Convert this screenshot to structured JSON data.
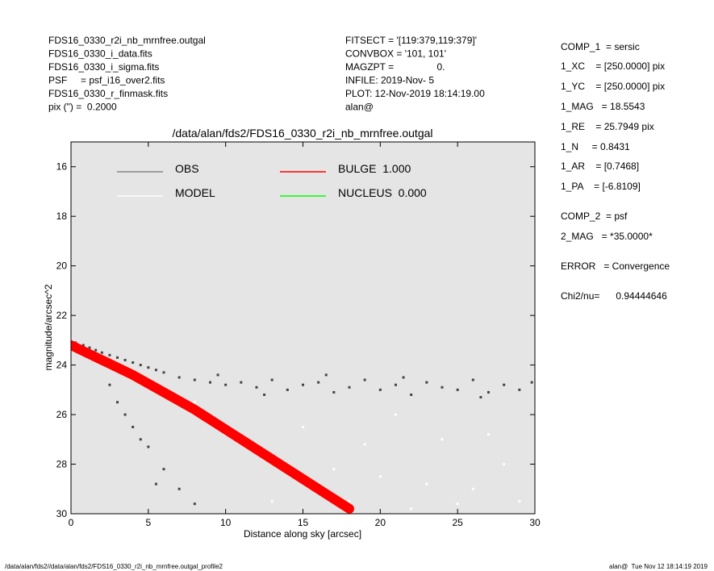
{
  "header": {
    "left": [
      "FDS16_0330_r2i_nb_mrnfree.outgal",
      "FDS16_0330_i_data.fits",
      "FDS16_0330_i_sigma.fits",
      "PSF     = psf_i16_over2.fits",
      "FDS16_0330_r_finmask.fits",
      "pix (\") =  0.2000"
    ],
    "middle": [
      "FITSECT = '[119:379,119:379]'",
      "CONVBOX = '101, 101'",
      "MAGZPT =                0.",
      "INFILE: 2019-Nov- 5",
      "PLOT: 12-Nov-2019 18:14:19.00",
      "alan@"
    ],
    "right": [
      "COMP_1  = sersic",
      "1_XC    = [250.0000] pix",
      "1_YC    = [250.0000] pix",
      "1_MAG   = 18.5543",
      "1_RE    = 25.7949 pix",
      "1_N     = 0.8431",
      "1_AR    = [0.7468]",
      "1_PA    = [-6.8109]",
      "COMP_2  = psf",
      "2_MAG   = *35.0000*",
      "ERROR   = Convergence",
      "Chi2/nu=      0.94444646"
    ]
  },
  "footer": {
    "left": "/data/alan/fds2//data/alan/fds2/FDS16_0330_r2i_nb_mrnfree.outgal_profile2",
    "right": "alan@  Tue Nov 12 18:14:19 2019"
  },
  "chart_data": {
    "type": "scatter",
    "title": "/data/alan/fds2/FDS16_0330_r2i_nb_mrnfree.outgal",
    "x_label": "Distance along sky [arcsec]",
    "y_label": "magnitude/arcsec^2",
    "xlim": [
      0,
      30
    ],
    "xticks": [
      0,
      5,
      10,
      15,
      20,
      25,
      30
    ],
    "ylim": [
      15,
      30
    ],
    "yticks": [
      16,
      18,
      20,
      22,
      24,
      26,
      28,
      30
    ],
    "y_inverted": true,
    "background": "#e5e5e5",
    "series": [
      {
        "name": "OBS",
        "color": "#444444",
        "legend_color": "#888888",
        "kind": "points",
        "x": [
          0.3,
          0.8,
          1.2,
          1.6,
          2.0,
          2.5,
          3,
          3.5,
          4,
          4.5,
          5,
          5.5,
          6,
          7,
          8,
          9,
          10,
          11,
          12,
          13,
          14,
          15,
          16,
          17,
          18,
          19,
          20,
          21,
          22,
          23,
          24,
          25,
          26,
          27,
          28,
          29,
          29.8,
          3,
          4,
          5,
          6,
          7,
          8,
          2.5,
          3.5,
          4.5,
          5.5,
          9.5,
          12.5,
          16.5,
          21.5,
          26.5
        ],
        "values": [
          23.1,
          23.2,
          23.3,
          23.4,
          23.5,
          23.6,
          23.7,
          23.8,
          23.9,
          24.0,
          24.1,
          24.2,
          24.3,
          24.5,
          24.6,
          24.7,
          24.8,
          24.7,
          24.9,
          24.6,
          25.0,
          24.8,
          24.7,
          25.1,
          24.9,
          24.6,
          25.0,
          24.8,
          25.2,
          24.7,
          24.9,
          25.0,
          24.6,
          25.1,
          24.8,
          25.0,
          24.7,
          25.5,
          26.5,
          27.3,
          28.2,
          29.0,
          29.6,
          24.8,
          26.0,
          27.0,
          28.8,
          24.4,
          25.2,
          24.4,
          24.5,
          25.3
        ]
      },
      {
        "name": "MODEL",
        "color": "#ffffff",
        "legend_color": "#ffffff",
        "kind": "points",
        "x": [
          8,
          10,
          12,
          14,
          16,
          18,
          20,
          22,
          24,
          26,
          28,
          29,
          15,
          19,
          21,
          23,
          25,
          27,
          17,
          13
        ],
        "values": [
          25.5,
          26.5,
          27.5,
          28,
          29,
          29.5,
          28.5,
          29.8,
          27,
          29,
          28,
          29.5,
          26.5,
          27.2,
          26,
          28.8,
          29.6,
          26.8,
          28.2,
          29.5
        ]
      },
      {
        "name": "BULGE  1.000",
        "color": "#ff0000",
        "legend_color": "#ff0000",
        "kind": "line",
        "x": [
          0,
          2,
          4,
          6,
          8,
          10,
          12,
          14,
          16,
          18
        ],
        "values": [
          23.2,
          23.8,
          24.4,
          25.1,
          25.8,
          26.6,
          27.4,
          28.2,
          29.0,
          29.8
        ]
      },
      {
        "name": "NUCLEUS  0.000",
        "color": "#00ff00",
        "legend_color": "#00ff00",
        "kind": "line",
        "x": [],
        "values": []
      }
    ]
  }
}
